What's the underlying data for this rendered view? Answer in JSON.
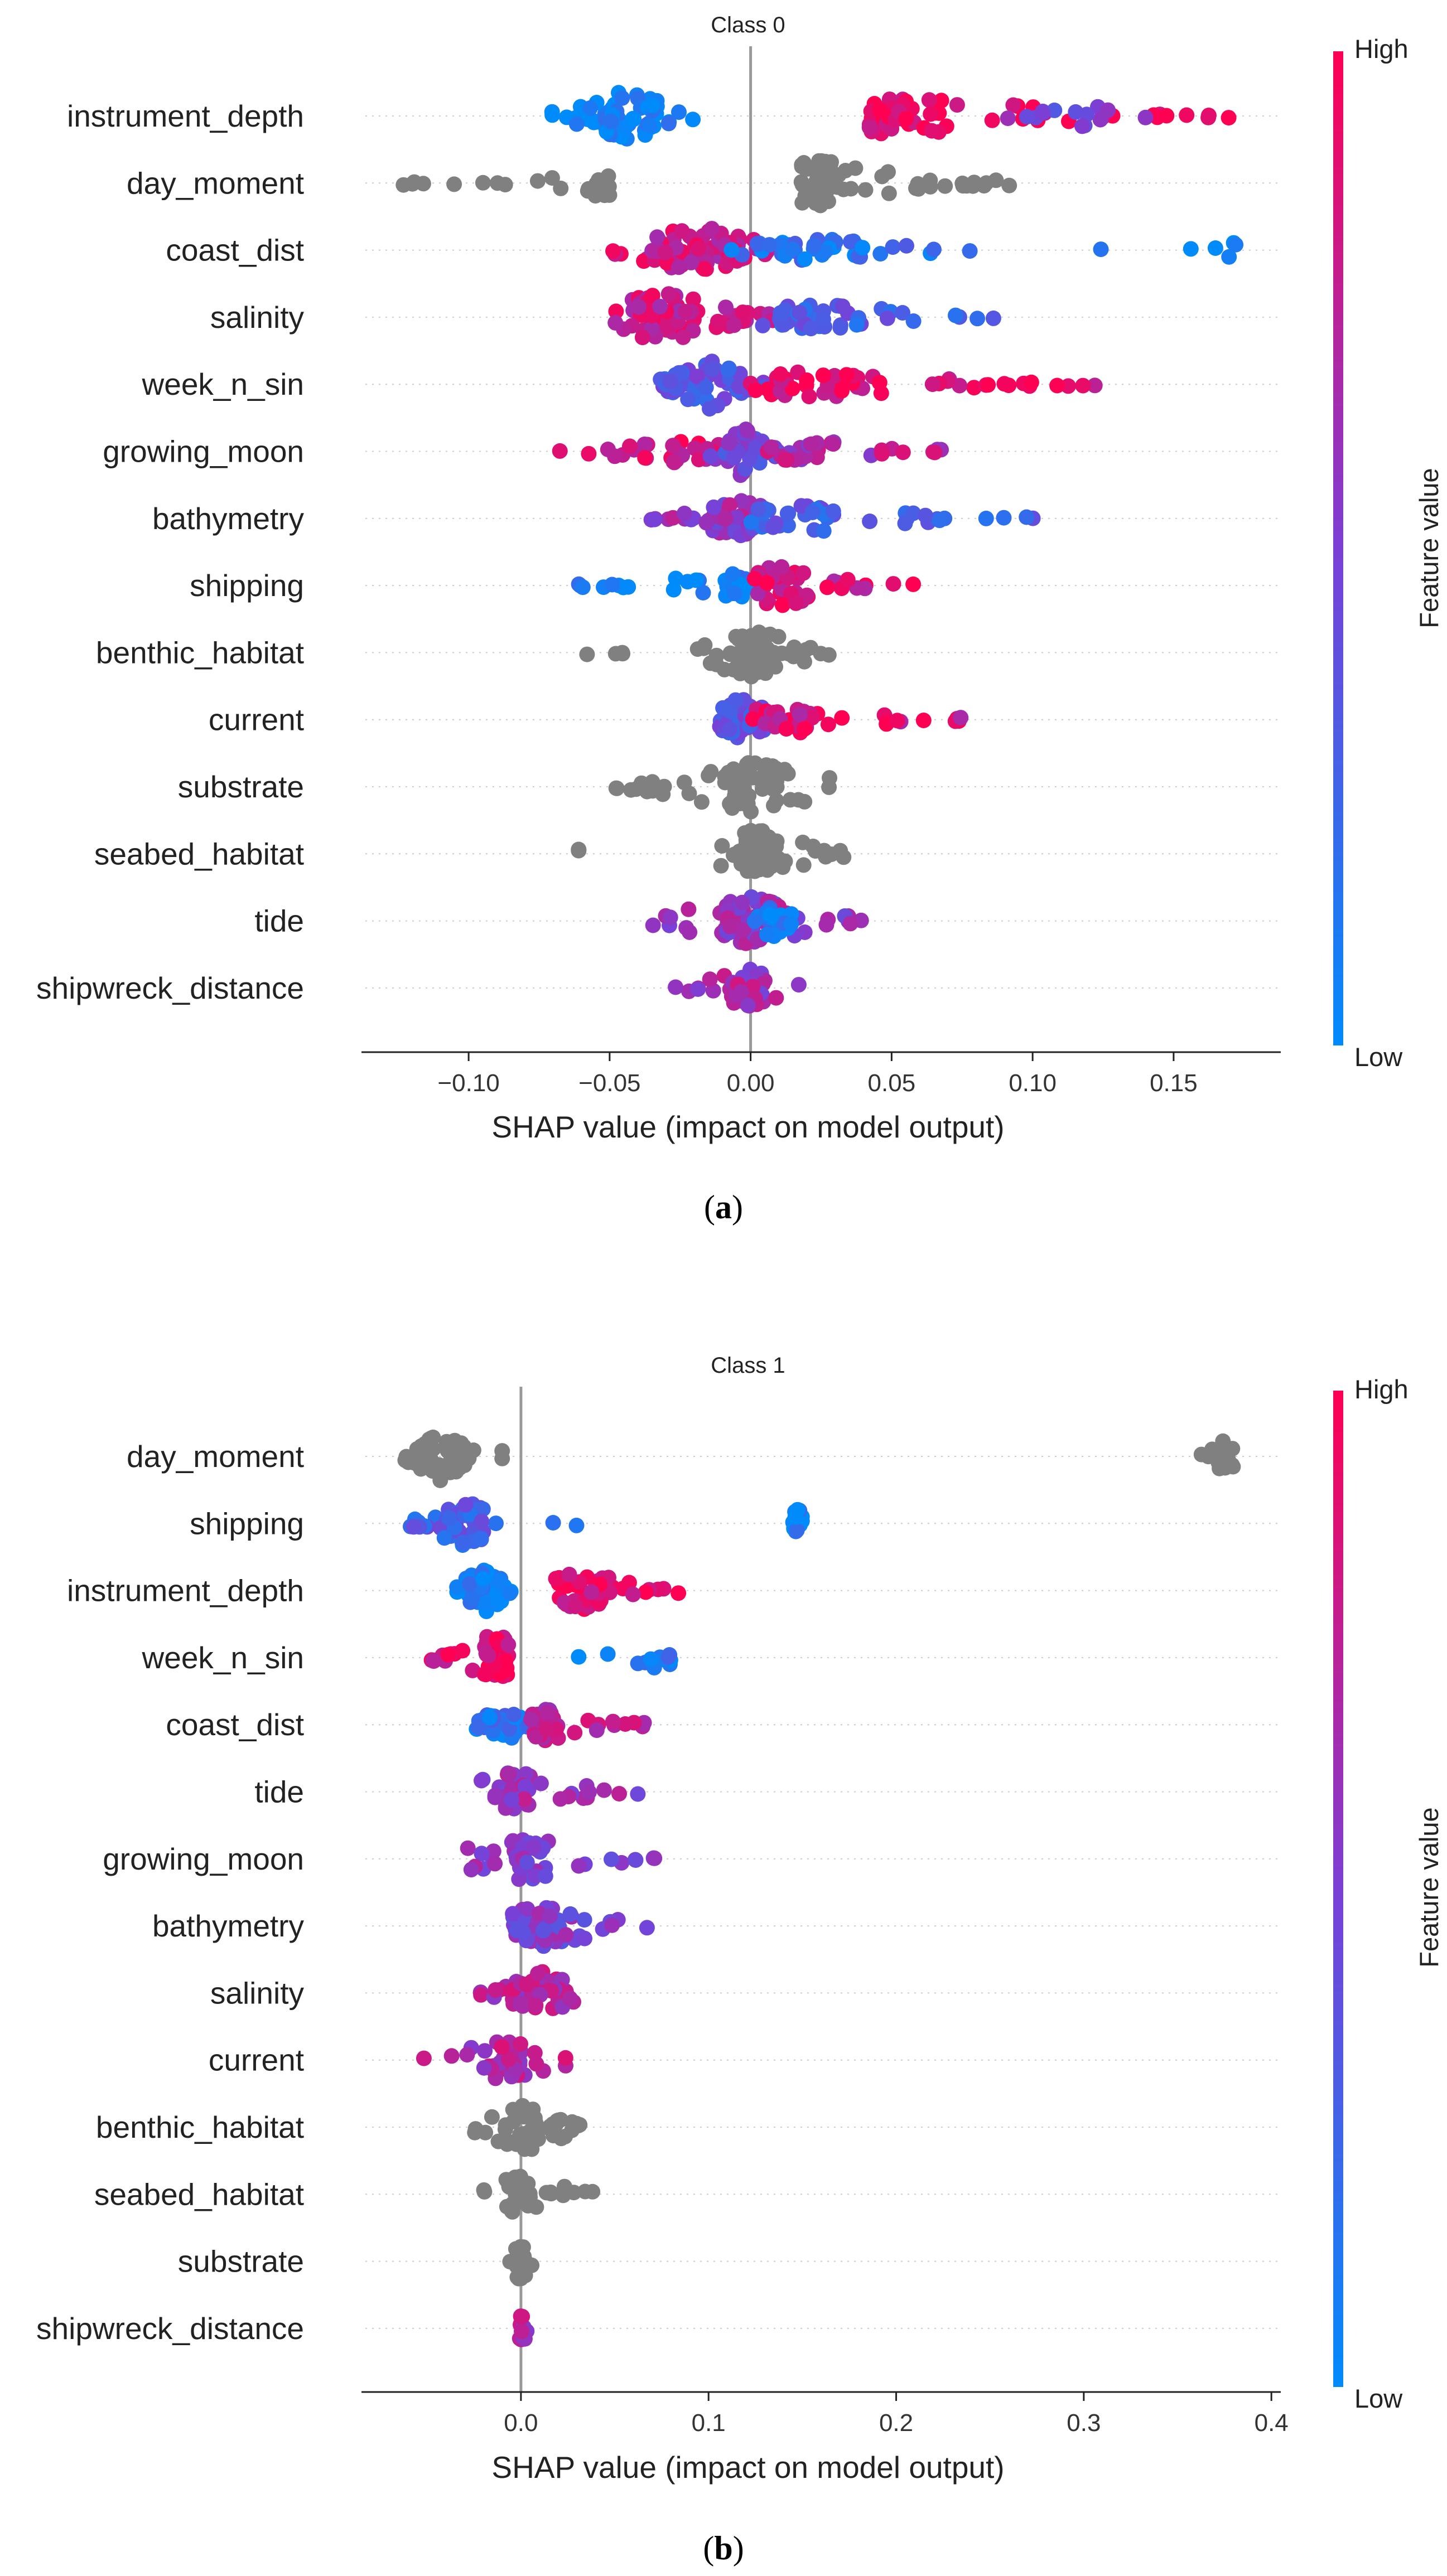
{
  "chart_data": [
    {
      "type": "scatter",
      "subtype": "shap-beeswarm",
      "title": "Class 0",
      "caption": "a",
      "xlabel": "SHAP value (impact on model output)",
      "colorbar": {
        "label": "Feature value",
        "high": "High",
        "low": "Low",
        "low_color": "#008bfb",
        "high_color": "#ff0052"
      },
      "xlim": [
        -0.138,
        0.188
      ],
      "xticks": [
        {
          "v": -0.1,
          "label": "−0.10"
        },
        {
          "v": -0.05,
          "label": "−0.05"
        },
        {
          "v": 0.0,
          "label": "0.00"
        },
        {
          "v": 0.05,
          "label": "0.05"
        },
        {
          "v": 0.1,
          "label": "0.10"
        },
        {
          "v": 0.15,
          "label": "0.15"
        }
      ],
      "features": [
        {
          "name": "instrument_depth",
          "groups": [
            {
              "min": -0.072,
              "max": -0.02,
              "core": [
                -0.058,
                -0.032
              ],
              "color": 0.02,
              "n": 70,
              "h": 1.0
            },
            {
              "min": 0.038,
              "max": 0.172,
              "core": [
                0.042,
                0.07
              ],
              "color": 0.95,
              "n": 60,
              "h": 0.8
            },
            {
              "min": 0.09,
              "max": 0.15,
              "core": [
                0.115,
                0.125
              ],
              "color": 0.45,
              "n": 14,
              "h": 0.5
            }
          ]
        },
        {
          "name": "day_moment",
          "groups": [
            {
              "min": -0.124,
              "max": -0.05,
              "core": [
                -0.056,
                -0.05
              ],
              "color": null,
              "n": 28,
              "h": 0.55
            },
            {
              "min": 0.018,
              "max": 0.095,
              "core": [
                0.018,
                0.03
              ],
              "color": null,
              "n": 75,
              "h": 0.95
            }
          ]
        },
        {
          "name": "coast_dist",
          "groups": [
            {
              "min": -0.05,
              "max": 0.008,
              "core": [
                -0.035,
                -0.002
              ],
              "color": 0.8,
              "n": 75,
              "h": 1.0
            },
            {
              "min": -0.01,
              "max": 0.08,
              "core": [
                0.01,
                0.04
              ],
              "color": 0.15,
              "n": 40,
              "h": 0.45
            },
            {
              "min": 0.12,
              "max": 0.172,
              "core": [
                0.168,
                0.172
              ],
              "color": 0.0,
              "n": 6,
              "h": 0.35
            }
          ]
        },
        {
          "name": "salinity",
          "groups": [
            {
              "min": -0.052,
              "max": 0.01,
              "core": [
                -0.042,
                -0.02
              ],
              "color": 0.8,
              "n": 70,
              "h": 1.0
            },
            {
              "min": 0.0,
              "max": 0.088,
              "core": [
                0.01,
                0.04
              ],
              "color": 0.3,
              "n": 45,
              "h": 0.55
            }
          ]
        },
        {
          "name": "week_n_sin",
          "groups": [
            {
              "min": -0.032,
              "max": 0.005,
              "core": [
                -0.03,
                0.0
              ],
              "color": 0.35,
              "n": 65,
              "h": 1.0
            },
            {
              "min": 0.0,
              "max": 0.124,
              "core": [
                0.005,
                0.04
              ],
              "color": 0.9,
              "n": 55,
              "h": 0.55
            }
          ]
        },
        {
          "name": "growing_moon",
          "groups": [
            {
              "min": -0.072,
              "max": -0.01,
              "core": [
                -0.04,
                -0.015
              ],
              "color": 0.85,
              "n": 28,
              "h": 0.45
            },
            {
              "min": -0.015,
              "max": 0.01,
              "core": [
                -0.012,
                0.005
              ],
              "color": 0.45,
              "n": 50,
              "h": 1.0
            },
            {
              "min": 0.005,
              "max": 0.068,
              "core": [
                0.01,
                0.03
              ],
              "color": 0.7,
              "n": 32,
              "h": 0.5
            }
          ]
        },
        {
          "name": "bathymetry",
          "groups": [
            {
              "min": -0.038,
              "max": 0.005,
              "core": [
                -0.015,
                0.005
              ],
              "color": 0.6,
              "n": 45,
              "h": 0.75
            },
            {
              "min": 0.0,
              "max": 0.106,
              "core": [
                0.0,
                0.03
              ],
              "color": 0.3,
              "n": 45,
              "h": 0.6
            }
          ]
        },
        {
          "name": "shipping",
          "groups": [
            {
              "min": -0.075,
              "max": 0.005,
              "core": [
                -0.01,
                0.0
              ],
              "color": 0.05,
              "n": 40,
              "h": 0.5
            },
            {
              "min": 0.0,
              "max": 0.06,
              "core": [
                0.0,
                0.02
              ],
              "color": 0.85,
              "n": 45,
              "h": 0.85
            }
          ]
        },
        {
          "name": "benthic_habitat",
          "groups": [
            {
              "min": -0.06,
              "max": -0.045,
              "core": [
                -0.058,
                -0.058
              ],
              "color": null,
              "n": 4,
              "h": 0.45
            },
            {
              "min": -0.02,
              "max": 0.028,
              "core": [
                -0.008,
                0.008
              ],
              "color": null,
              "n": 70,
              "h": 1.0
            }
          ]
        },
        {
          "name": "current",
          "groups": [
            {
              "min": -0.012,
              "max": 0.01,
              "core": [
                -0.01,
                0.005
              ],
              "color": 0.4,
              "n": 55,
              "h": 1.0
            },
            {
              "min": 0.0,
              "max": 0.08,
              "core": [
                0.005,
                0.025
              ],
              "color": 0.85,
              "n": 40,
              "h": 0.6
            }
          ]
        },
        {
          "name": "substrate",
          "groups": [
            {
              "min": -0.048,
              "max": 0.028,
              "core": [
                -0.01,
                0.01
              ],
              "color": null,
              "n": 75,
              "h": 1.0
            }
          ]
        },
        {
          "name": "seabed_habitat",
          "groups": [
            {
              "min": -0.062,
              "max": -0.06,
              "core": [
                -0.061,
                -0.061
              ],
              "color": null,
              "n": 2,
              "h": 0.3
            },
            {
              "min": -0.012,
              "max": 0.038,
              "core": [
                -0.005,
                0.01
              ],
              "color": null,
              "n": 60,
              "h": 1.0
            }
          ]
        },
        {
          "name": "tide",
          "groups": [
            {
              "min": -0.035,
              "max": 0.04,
              "core": [
                -0.01,
                0.01
              ],
              "color": 0.6,
              "n": 70,
              "h": 1.0
            },
            {
              "min": 0.0,
              "max": 0.015,
              "core": [
                0.005,
                0.012
              ],
              "color": 0.1,
              "n": 20,
              "h": 0.8
            }
          ]
        },
        {
          "name": "shipwreck_distance",
          "groups": [
            {
              "min": -0.028,
              "max": 0.02,
              "core": [
                -0.008,
                0.005
              ],
              "color": 0.65,
              "n": 45,
              "h": 0.8
            }
          ]
        }
      ]
    },
    {
      "type": "scatter",
      "subtype": "shap-beeswarm",
      "title": "Class 1",
      "caption": "b",
      "xlabel": "SHAP value (impact on model output)",
      "colorbar": {
        "label": "Feature value",
        "high": "High",
        "low": "Low",
        "low_color": "#008bfb",
        "high_color": "#ff0052"
      },
      "xlim": [
        -0.085,
        0.405
      ],
      "xticks": [
        {
          "v": 0.0,
          "label": "0.0"
        },
        {
          "v": 0.1,
          "label": "0.1"
        },
        {
          "v": 0.2,
          "label": "0.2"
        },
        {
          "v": 0.3,
          "label": "0.3"
        },
        {
          "v": 0.4,
          "label": "0.4"
        }
      ],
      "features": [
        {
          "name": "day_moment",
          "groups": [
            {
              "min": -0.062,
              "max": -0.025,
              "core": [
                -0.055,
                -0.03
              ],
              "color": null,
              "n": 70,
              "h": 1.0
            },
            {
              "min": -0.012,
              "max": -0.008,
              "core": [
                -0.01,
                -0.01
              ],
              "color": null,
              "n": 2,
              "h": 0.3
            },
            {
              "min": 0.362,
              "max": 0.382,
              "core": [
                0.37,
                0.38
              ],
              "color": null,
              "n": 14,
              "h": 0.7
            }
          ]
        },
        {
          "name": "shipping",
          "groups": [
            {
              "min": -0.065,
              "max": -0.012,
              "core": [
                -0.04,
                -0.02
              ],
              "color": 0.3,
              "n": 55,
              "h": 0.9
            },
            {
              "min": 0.01,
              "max": 0.15,
              "core": [
                0.145,
                0.15
              ],
              "color": 0.05,
              "n": 18,
              "h": 0.55
            }
          ]
        },
        {
          "name": "instrument_depth",
          "groups": [
            {
              "min": -0.036,
              "max": -0.005,
              "core": [
                -0.03,
                -0.01
              ],
              "color": 0.05,
              "n": 55,
              "h": 1.0
            },
            {
              "min": 0.015,
              "max": 0.085,
              "core": [
                0.02,
                0.045
              ],
              "color": 0.9,
              "n": 45,
              "h": 0.8
            }
          ]
        },
        {
          "name": "week_n_sin",
          "groups": [
            {
              "min": -0.048,
              "max": -0.005,
              "core": [
                -0.02,
                -0.008
              ],
              "color": 0.9,
              "n": 55,
              "h": 1.0
            },
            {
              "min": 0.012,
              "max": 0.08,
              "core": [
                0.06,
                0.08
              ],
              "color": 0.1,
              "n": 14,
              "h": 0.5
            }
          ]
        },
        {
          "name": "coast_dist",
          "groups": [
            {
              "min": -0.025,
              "max": 0.005,
              "core": [
                -0.02,
                0.0
              ],
              "color": 0.15,
              "n": 40,
              "h": 0.75
            },
            {
              "min": 0.0,
              "max": 0.075,
              "core": [
                0.005,
                0.02
              ],
              "color": 0.75,
              "n": 40,
              "h": 0.65
            }
          ]
        },
        {
          "name": "tide",
          "groups": [
            {
              "min": -0.022,
              "max": 0.065,
              "core": [
                -0.01,
                0.005
              ],
              "color": 0.6,
              "n": 50,
              "h": 0.85
            }
          ]
        },
        {
          "name": "growing_moon",
          "groups": [
            {
              "min": -0.03,
              "max": 0.075,
              "core": [
                -0.005,
                0.015
              ],
              "color": 0.55,
              "n": 55,
              "h": 0.9
            }
          ]
        },
        {
          "name": "bathymetry",
          "groups": [
            {
              "min": -0.022,
              "max": 0.068,
              "core": [
                -0.005,
                0.03
              ],
              "color": 0.5,
              "n": 55,
              "h": 0.85
            }
          ]
        },
        {
          "name": "salinity",
          "groups": [
            {
              "min": -0.025,
              "max": 0.032,
              "core": [
                -0.005,
                0.028
              ],
              "color": 0.7,
              "n": 55,
              "h": 0.85
            }
          ]
        },
        {
          "name": "current",
          "groups": [
            {
              "min": -0.055,
              "max": 0.025,
              "core": [
                -0.02,
                0.0
              ],
              "color": 0.7,
              "n": 45,
              "h": 0.8
            }
          ]
        },
        {
          "name": "benthic_habitat",
          "groups": [
            {
              "min": -0.028,
              "max": 0.032,
              "core": [
                -0.005,
                0.01
              ],
              "color": null,
              "n": 55,
              "h": 1.0
            }
          ]
        },
        {
          "name": "seabed_habitat",
          "groups": [
            {
              "min": -0.02,
              "max": 0.04,
              "core": [
                -0.005,
                0.005
              ],
              "color": null,
              "n": 45,
              "h": 0.8
            }
          ]
        },
        {
          "name": "substrate",
          "groups": [
            {
              "min": -0.006,
              "max": 0.006,
              "core": [
                -0.003,
                0.003
              ],
              "color": null,
              "n": 25,
              "h": 0.85
            }
          ]
        },
        {
          "name": "shipwreck_distance",
          "groups": [
            {
              "min": -0.003,
              "max": 0.004,
              "core": [
                -0.001,
                0.002
              ],
              "color": 0.7,
              "n": 12,
              "h": 0.7
            }
          ]
        }
      ]
    }
  ]
}
